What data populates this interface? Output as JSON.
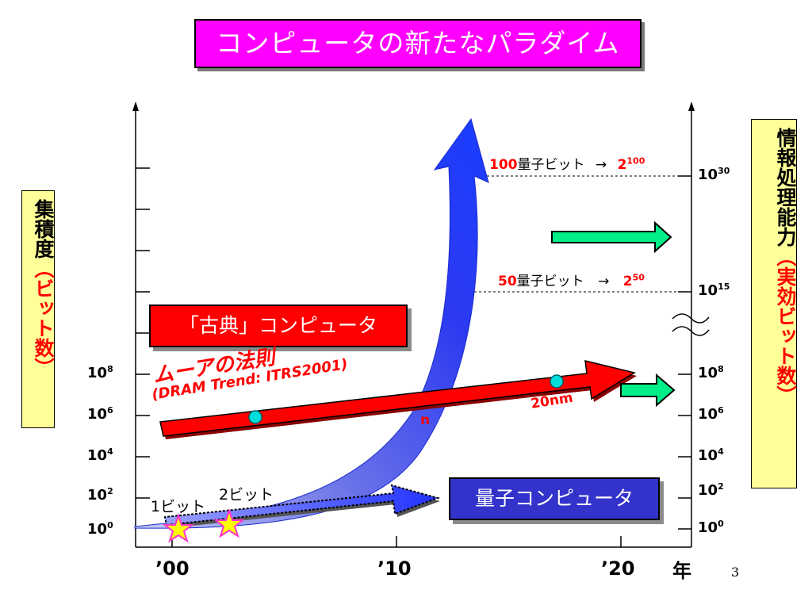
{
  "title": "コンピュータの新たなパラダイム",
  "left_axis_label": {
    "main": "集積度",
    "sub": "（ビット数）"
  },
  "right_axis_label": {
    "main": "情報処理能力",
    "sub": "（実効ビット数）"
  },
  "left_ticks": [
    {
      "base": "10",
      "exp": "8"
    },
    {
      "base": "10",
      "exp": "6"
    },
    {
      "base": "10",
      "exp": "4"
    },
    {
      "base": "10",
      "exp": "2"
    },
    {
      "base": "10",
      "exp": "0"
    }
  ],
  "right_ticks": [
    {
      "base": "10",
      "exp": "30"
    },
    {
      "base": "10",
      "exp": "15"
    },
    {
      "base": "10",
      "exp": "8"
    },
    {
      "base": "10",
      "exp": "6"
    },
    {
      "base": "10",
      "exp": "4"
    },
    {
      "base": "10",
      "exp": "2"
    },
    {
      "base": "10",
      "exp": "0"
    }
  ],
  "x_labels": [
    "’00",
    "’10",
    "’20"
  ],
  "x_unit": "年",
  "qubits_100": {
    "count": "100",
    "unit": "量子ビット",
    "arrow": "→",
    "base": "2",
    "exp": "100"
  },
  "qubits_50": {
    "count": "50",
    "unit": "量子ビット",
    "arrow": "→",
    "base": "2",
    "exp": "50"
  },
  "classic_label": "「古典」コンピュータ",
  "moore_title": "ムーアの法則",
  "moore_sub": "(DRAM Trend: ITRS2001)",
  "nm_label": "20nm",
  "nm_partial": "n",
  "quantum_label": "量子コンピュータ",
  "bit1_label": "1ビット",
  "bit2_label": "2ビット",
  "page_number": "3",
  "colors": {
    "title_bg": "#ff00ff",
    "axis_label_bg": "#ffff99",
    "classic_arrow": "#ff0000",
    "quantum_arrow": "#3333ff",
    "green_arrow": "#00ee88",
    "dot": "#00dddd",
    "star": "#ffff00"
  }
}
